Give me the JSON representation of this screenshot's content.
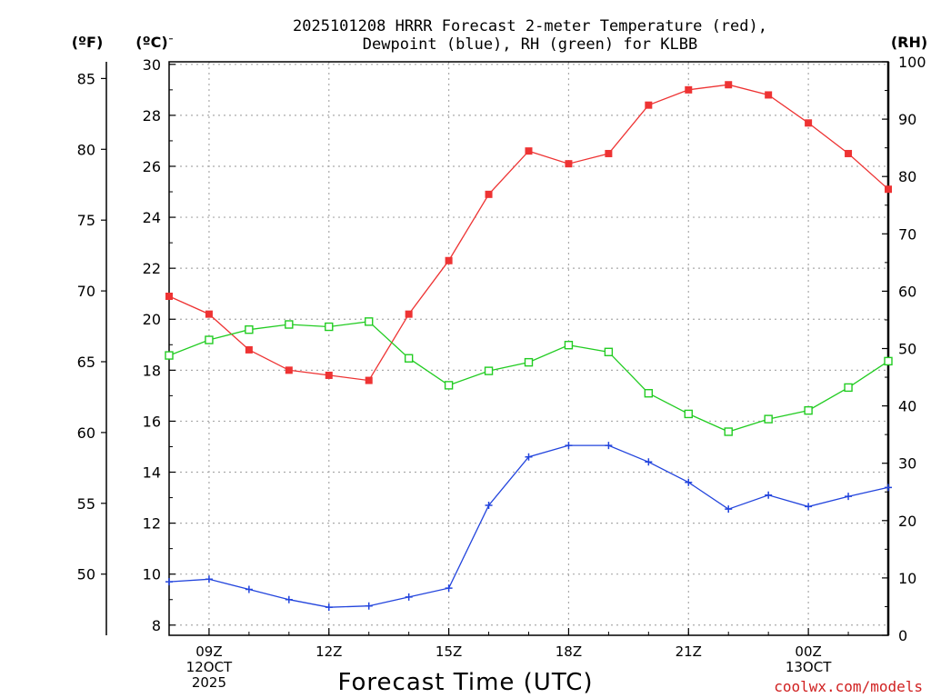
{
  "chart_data": {
    "type": "line",
    "title_line1": "2025101208 HRRR Forecast 2-meter Temperature (red),",
    "title_line2": "Dewpoint (blue), RH (green) for KLBB",
    "unit_f": "(ºF)",
    "unit_c": "(ºC)",
    "unit_rh": "(RH)",
    "xlabel": "Forecast Time (UTC)",
    "credit": "coolwx.com/models",
    "hours": [
      8,
      9,
      10,
      11,
      12,
      13,
      14,
      15,
      16,
      17,
      18,
      19,
      20,
      21,
      22,
      23,
      24,
      25,
      26
    ],
    "x_range": [
      8,
      26
    ],
    "x_ticks": [
      {
        "hour": 9,
        "lines": [
          "09Z",
          "12OCT",
          "2025"
        ]
      },
      {
        "hour": 12,
        "lines": [
          "12Z"
        ]
      },
      {
        "hour": 15,
        "lines": [
          "15Z"
        ]
      },
      {
        "hour": 18,
        "lines": [
          "18Z"
        ]
      },
      {
        "hour": 21,
        "lines": [
          "21Z"
        ]
      },
      {
        "hour": 24,
        "lines": [
          "00Z",
          "13OCT"
        ]
      }
    ],
    "celsius_axis": {
      "range": [
        7.6,
        30.1
      ],
      "ticks": [
        8,
        10,
        12,
        14,
        16,
        18,
        20,
        22,
        24,
        26,
        28,
        30
      ]
    },
    "fahrenheit_axis": {
      "ticks": [
        50,
        55,
        60,
        65,
        70,
        75,
        80,
        85
      ]
    },
    "rh_axis": {
      "range": [
        0,
        100
      ],
      "ticks": [
        0,
        10,
        20,
        30,
        40,
        50,
        60,
        70,
        80,
        90,
        100
      ]
    },
    "series": [
      {
        "name": "Temperature",
        "axis": "celsius",
        "color": "#ee3333",
        "marker": "filled-square",
        "values": [
          20.9,
          20.2,
          18.8,
          18.0,
          17.8,
          17.6,
          20.2,
          22.3,
          24.9,
          26.6,
          26.1,
          26.5,
          28.4,
          29.0,
          29.2,
          28.8,
          27.7,
          26.5,
          25.1
        ]
      },
      {
        "name": "Dewpoint",
        "axis": "celsius",
        "color": "#2244dd",
        "marker": "plus",
        "values": [
          9.7,
          9.8,
          9.4,
          9.0,
          8.7,
          8.75,
          9.1,
          9.45,
          12.7,
          14.6,
          15.05,
          15.05,
          14.4,
          13.6,
          12.55,
          13.1,
          12.65,
          13.05,
          13.4
        ]
      },
      {
        "name": "RH",
        "axis": "rh",
        "color": "#22cc22",
        "marker": "open-square",
        "values": [
          48.8,
          51.5,
          53.3,
          54.2,
          53.8,
          54.7,
          48.3,
          43.6,
          46.1,
          47.6,
          50.6,
          49.4,
          42.2,
          38.6,
          35.5,
          37.7,
          39.2,
          43.2,
          47.8
        ]
      }
    ]
  }
}
